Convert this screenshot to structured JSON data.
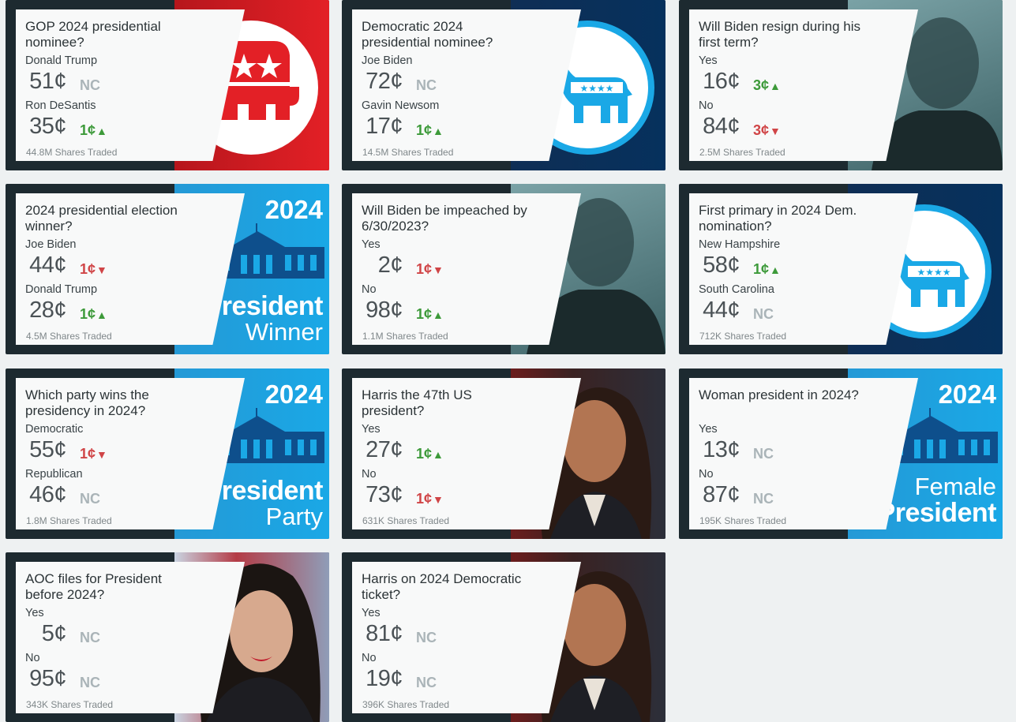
{
  "cards": [
    {
      "title": "GOP 2024 presidential nominee?",
      "o1": "Donald Trump",
      "p1": "51¢",
      "c1": "NC",
      "o2": "Ron DeSantis",
      "p2": "35¢",
      "c2": "1¢",
      "traded": "44.8M Shares Traded",
      "art": "republican-elephant-logo"
    },
    {
      "title": "Democratic 2024 presidential nominee?",
      "o1": "Joe Biden",
      "p1": "72¢",
      "c1": "NC",
      "o2": "Gavin Newsom",
      "p2": "17¢",
      "c2": "1¢",
      "traded": "14.5M Shares Traded",
      "art": "democratic-donkey-logo"
    },
    {
      "title": "Will Biden resign during his first term?",
      "o1": "Yes",
      "p1": "16¢",
      "c1": "3¢",
      "o2": "No",
      "p2": "84¢",
      "c2": "3¢",
      "traded": "2.5M Shares Traded",
      "art": "biden-photo"
    },
    {
      "title": "2024 presidential election winner?",
      "o1": "Joe Biden",
      "p1": "44¢",
      "c1": "1¢",
      "o2": "Donald Trump",
      "p2": "28¢",
      "c2": "1¢",
      "traded": "4.5M Shares Traded",
      "art": "white-house-graphic",
      "banner": {
        "year": "2024",
        "line1": "President",
        "line2": "Winner"
      }
    },
    {
      "title": "Will Biden be impeached by 6/30/2023?",
      "o1": "Yes",
      "p1": "2¢",
      "c1": "1¢",
      "o2": "No",
      "p2": "98¢",
      "c2": "1¢",
      "traded": "1.1M Shares Traded",
      "art": "biden-photo"
    },
    {
      "title": "First primary in 2024 Dem. nomination?",
      "o1": "New Hampshire",
      "p1": "58¢",
      "c1": "1¢",
      "o2": "South Carolina",
      "p2": "44¢",
      "c2": "NC",
      "traded": "712K Shares Traded",
      "art": "democratic-donkey-logo"
    },
    {
      "title": "Which party wins the presidency in 2024?",
      "o1": "Democratic",
      "p1": "55¢",
      "c1": "1¢",
      "o2": "Republican",
      "p2": "46¢",
      "c2": "NC",
      "traded": "1.8M Shares Traded",
      "art": "white-house-graphic",
      "banner": {
        "year": "2024",
        "line1": "President",
        "line2": "Party"
      }
    },
    {
      "title": "Harris the 47th US president?",
      "o1": "Yes",
      "p1": "27¢",
      "c1": "1¢",
      "o2": "No",
      "p2": "73¢",
      "c2": "1¢",
      "traded": "631K Shares Traded",
      "art": "harris-photo"
    },
    {
      "title": "Woman president in 2024?",
      "o1": "Yes",
      "p1": "13¢",
      "c1": "NC",
      "o2": "No",
      "p2": "87¢",
      "c2": "NC",
      "traded": "195K Shares Traded",
      "art": "white-house-graphic",
      "banner": {
        "year": "2024",
        "line1": "Female",
        "line2": "President"
      }
    },
    {
      "title": "AOC files for President before 2024?",
      "o1": "Yes",
      "p1": "5¢",
      "c1": "NC",
      "o2": "No",
      "p2": "95¢",
      "c2": "NC",
      "traded": "343K Shares Traded",
      "art": "aoc-photo"
    },
    {
      "title": "Harris on 2024 Democratic ticket?",
      "o1": "Yes",
      "p1": "81¢",
      "c1": "NC",
      "o2": "No",
      "p2": "19¢",
      "c2": "NC",
      "traded": "396K Shares Traded",
      "art": "harris-photo"
    }
  ],
  "direction_icons": {
    "up": "arrow-up-icon",
    "down": "arrow-down-icon"
  },
  "colors": {
    "up": "#3d9a3a",
    "down": "#d04547",
    "nc": "#aab4b8",
    "card_dark": "#1d2a30",
    "panel": "#f8f9f9"
  }
}
